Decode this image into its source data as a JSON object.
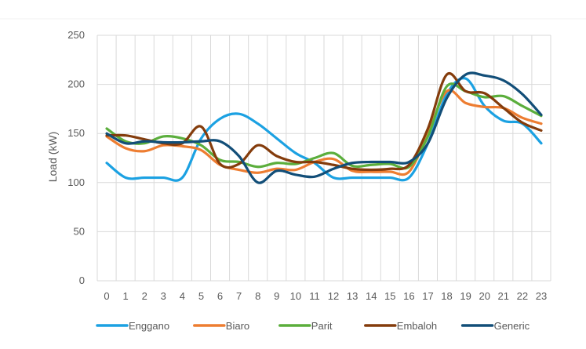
{
  "chart_data": {
    "type": "line",
    "title": "",
    "xlabel": "",
    "ylabel": "Load (kW)",
    "ylim": [
      0,
      250
    ],
    "yticks": [
      0,
      50,
      100,
      150,
      200,
      250
    ],
    "grid": true,
    "legend_position": "bottom",
    "x": [
      0,
      1,
      2,
      3,
      4,
      5,
      6,
      7,
      8,
      9,
      10,
      11,
      12,
      13,
      14,
      15,
      16,
      17,
      18,
      19,
      20,
      21,
      22,
      23
    ],
    "series": [
      {
        "name": "Enggano",
        "color": "#1BA1E2",
        "values": [
          120,
          105,
          105,
          105,
          105,
          145,
          165,
          170,
          160,
          145,
          130,
          120,
          105,
          105,
          105,
          105,
          105,
          140,
          190,
          206,
          178,
          163,
          160,
          140
        ]
      },
      {
        "name": "Biaro",
        "color": "#ED7D31",
        "values": [
          147,
          135,
          132,
          138,
          137,
          133,
          118,
          113,
          110,
          114,
          113,
          121,
          124,
          112,
          111,
          111,
          111,
          150,
          193,
          181,
          177,
          176,
          166,
          160
        ]
      },
      {
        "name": "Parit",
        "color": "#5BAE3C",
        "values": [
          155,
          142,
          140,
          147,
          145,
          138,
          123,
          121,
          116,
          120,
          119,
          125,
          130,
          117,
          118,
          119,
          116,
          147,
          198,
          193,
          187,
          188,
          178,
          168
        ]
      },
      {
        "name": "Embaloh",
        "color": "#843C0C",
        "values": [
          148,
          148,
          144,
          140,
          140,
          157,
          119,
          119,
          138,
          127,
          121,
          121,
          118,
          114,
          113,
          114,
          118,
          155,
          210,
          193,
          191,
          176,
          161,
          153
        ]
      },
      {
        "name": "Generic",
        "color": "#124E78",
        "values": [
          150,
          140,
          142,
          141,
          141,
          142,
          142,
          127,
          100,
          112,
          108,
          106,
          114,
          120,
          121,
          121,
          121,
          140,
          186,
          210,
          209,
          204,
          190,
          169
        ]
      }
    ]
  }
}
